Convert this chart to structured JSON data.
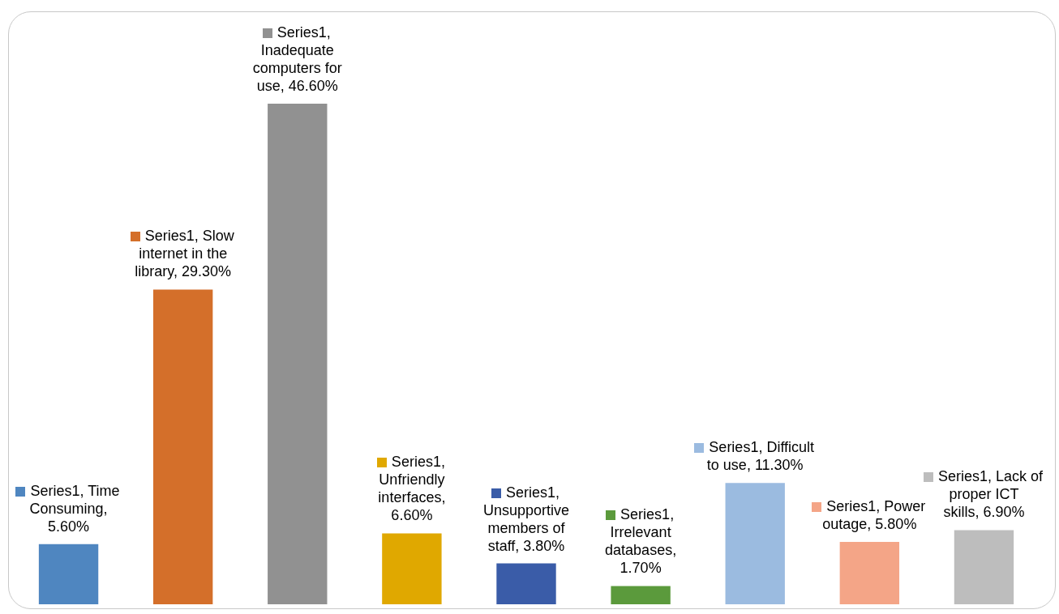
{
  "chart_data": {
    "type": "bar",
    "categories": [
      null,
      null,
      null,
      null,
      null,
      null,
      null,
      null,
      null
    ],
    "series": [
      {
        "values": [
          5.6,
          29.3,
          46.6,
          6.6,
          3.8,
          1.7,
          11.3,
          5.8,
          6.9
        ],
        "colors": [
          "#4f86c0",
          "#d46f2a",
          "#919191",
          "#e0a800",
          "#3a5ca8",
          "#5b9a3c",
          "#9bbbe0",
          "#f4a587",
          "#bdbdbd"
        ],
        "value_labels": [
          "Series1, Time Consuming, 5.60%",
          "Series1, Slow internet in the library, 29.30%",
          "Series1, Inadequate computers for use, 46.60%",
          "Series1, Unfriendly interfaces, 6.60%",
          "Series1, Unsupportive members of staff, 3.80%",
          "Series1, Irrelevant databases, 1.70%",
          "Series1, Difficult to use, 11.30%",
          "Series1, Power outage, 5.80%",
          "Series1, Lack of proper ICT skills, 6.90%"
        ]
      }
    ],
    "legend": false,
    "grid": false
  }
}
